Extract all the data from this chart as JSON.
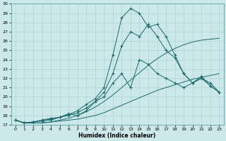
{
  "xlabel": "Humidex (Indice chaleur)",
  "xlim": [
    -0.5,
    23.5
  ],
  "ylim": [
    17,
    30
  ],
  "xticks": [
    0,
    1,
    2,
    3,
    4,
    5,
    6,
    7,
    8,
    9,
    10,
    11,
    12,
    13,
    14,
    15,
    16,
    17,
    18,
    19,
    20,
    21,
    22,
    23
  ],
  "yticks": [
    17,
    18,
    19,
    20,
    21,
    22,
    23,
    24,
    25,
    26,
    27,
    28,
    29,
    30
  ],
  "bg_color": "#cce8e8",
  "line_color": "#1a6b6b",
  "grid_color": "#aad4d4",
  "line1_x": [
    0,
    1,
    2,
    3,
    4,
    5,
    6,
    7,
    8,
    9,
    10,
    11,
    12,
    13,
    14,
    15,
    16,
    17,
    18,
    19,
    20,
    21,
    22,
    23
  ],
  "line1_y": [
    17.5,
    17.2,
    17.2,
    17.2,
    17.3,
    17.4,
    17.5,
    17.6,
    17.8,
    18.0,
    18.3,
    18.7,
    19.1,
    19.5,
    19.9,
    20.3,
    20.7,
    21.0,
    21.3,
    21.6,
    21.9,
    22.1,
    22.3,
    22.5
  ],
  "line2_x": [
    0,
    1,
    2,
    3,
    4,
    5,
    6,
    7,
    8,
    9,
    10,
    11,
    12,
    13,
    14,
    15,
    16,
    17,
    18,
    19,
    20,
    21,
    22,
    23
  ],
  "line2_y": [
    17.5,
    17.2,
    17.2,
    17.2,
    17.3,
    17.5,
    17.7,
    18.0,
    18.4,
    18.9,
    19.5,
    20.2,
    21.0,
    21.8,
    22.6,
    23.4,
    24.1,
    24.7,
    25.2,
    25.6,
    25.9,
    26.1,
    26.2,
    26.3
  ],
  "line3_x": [
    0,
    1,
    2,
    3,
    4,
    5,
    6,
    7,
    8,
    9,
    10,
    11,
    12,
    13,
    14,
    15,
    16,
    17,
    18,
    19,
    20,
    21,
    22,
    23
  ],
  "line3_y": [
    17.5,
    17.2,
    17.3,
    17.4,
    17.5,
    17.8,
    18.2,
    18.0,
    18.5,
    19.5,
    20.0,
    21.5,
    22.5,
    21.0,
    24.0,
    23.5,
    22.5,
    22.0,
    21.5,
    21.0,
    21.5,
    22.0,
    21.5,
    20.5
  ],
  "line4_x": [
    0,
    1,
    2,
    3,
    4,
    5,
    6,
    7,
    8,
    9,
    10,
    11,
    12,
    13,
    14,
    15,
    16,
    17,
    18,
    19,
    20,
    21,
    22,
    23
  ],
  "line4_y": [
    17.5,
    17.2,
    17.3,
    17.5,
    17.6,
    17.8,
    18.0,
    18.3,
    18.8,
    19.5,
    20.5,
    22.5,
    25.5,
    27.0,
    26.5,
    27.8,
    26.5,
    25.0,
    24.2,
    22.5,
    21.5,
    22.0,
    21.2,
    20.5
  ],
  "line5_x": [
    0,
    1,
    2,
    3,
    4,
    5,
    6,
    7,
    8,
    9,
    10,
    11,
    12,
    13,
    14,
    15,
    16,
    17,
    18,
    19,
    20,
    21,
    22,
    23
  ],
  "line5_y": [
    17.5,
    17.2,
    17.3,
    17.5,
    17.7,
    17.8,
    18.1,
    18.5,
    19.2,
    19.8,
    21.0,
    24.5,
    28.5,
    29.5,
    29.0,
    27.5,
    27.8,
    26.5,
    24.5,
    22.5,
    21.5,
    22.2,
    21.2,
    20.5
  ]
}
